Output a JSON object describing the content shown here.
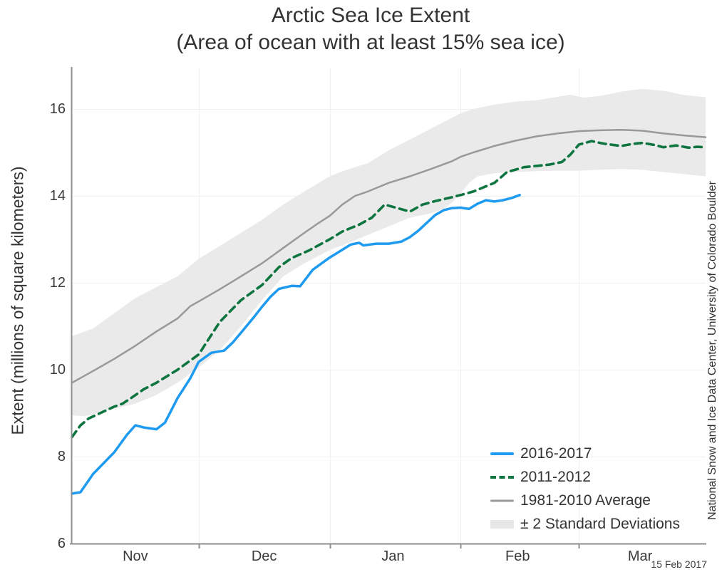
{
  "title": {
    "line1": "Arctic Sea Ice Extent",
    "line2": "(Area of ocean with at least 15% sea ice)"
  },
  "annotations": {
    "credit": "National Snow and Ice Data Center, University of Colorado Boulder",
    "date_stamp": "15 Feb 2017"
  },
  "colors": {
    "series_2016_2017": "#1e9bf0",
    "series_2011_2012": "#0e7540",
    "series_average": "#999999",
    "band": "#eaeaea",
    "gridline": "#f0f0f0",
    "axis": "#8f8f8f",
    "text": "#3a3a3a"
  },
  "legend": [
    {
      "label": "2016-2017",
      "swatch": "line-solid",
      "color": "#1e9bf0",
      "thickness": 4
    },
    {
      "label": "2011-2012",
      "swatch": "line-dashed",
      "color": "#0e7540",
      "thickness": 4
    },
    {
      "label": "1981-2010 Average",
      "swatch": "line-solid",
      "color": "#999999",
      "thickness": 3
    },
    {
      "label": "± 2 Standard Deviations",
      "swatch": "band",
      "color": "#e7e7e7",
      "thickness": 12
    }
  ],
  "chart_data": {
    "type": "line",
    "title": "Arctic Sea Ice Extent",
    "subtitle": "(Area of ocean with at least 15% sea ice)",
    "xlabel": "",
    "ylabel": "Extent (millions of square kilometers)",
    "x_unit": "days since 1 November",
    "xlim_days": [
      0,
      150
    ],
    "ylim": [
      6,
      16.93
    ],
    "grid": true,
    "legend_position": "lower right",
    "y_axis": {
      "label": "Extent (millions of square kilometers)",
      "ticks": [
        16,
        14,
        12,
        10,
        8,
        6
      ],
      "gridline_values": [
        8,
        10,
        12,
        14,
        16
      ]
    },
    "x_axis": {
      "months": [
        {
          "label": "Nov",
          "mid_day": 15
        },
        {
          "label": "Dec",
          "mid_day": 45.5
        },
        {
          "label": "Jan",
          "mid_day": 76
        },
        {
          "label": "Feb",
          "mid_day": 105.5
        },
        {
          "label": "Mar",
          "mid_day": 134.5
        }
      ],
      "tick_days": [
        30,
        61,
        92,
        120
      ]
    },
    "series": [
      {
        "name": "2016-2017",
        "style": "solid",
        "color": "#1e9bf0",
        "points": [
          [
            0,
            7.15
          ],
          [
            2,
            7.18
          ],
          [
            5,
            7.6
          ],
          [
            10,
            8.1
          ],
          [
            13,
            8.5
          ],
          [
            15,
            8.72
          ],
          [
            17,
            8.67
          ],
          [
            20,
            8.63
          ],
          [
            22,
            8.78
          ],
          [
            25,
            9.35
          ],
          [
            28,
            9.8
          ],
          [
            30,
            10.18
          ],
          [
            33,
            10.39
          ],
          [
            36,
            10.44
          ],
          [
            38,
            10.62
          ],
          [
            40,
            10.85
          ],
          [
            43,
            11.2
          ],
          [
            45,
            11.45
          ],
          [
            47,
            11.68
          ],
          [
            49,
            11.86
          ],
          [
            52,
            11.93
          ],
          [
            54,
            11.92
          ],
          [
            57,
            12.3
          ],
          [
            61,
            12.58
          ],
          [
            64,
            12.76
          ],
          [
            66,
            12.88
          ],
          [
            68,
            12.92
          ],
          [
            69,
            12.86
          ],
          [
            72,
            12.9
          ],
          [
            75,
            12.9
          ],
          [
            78,
            12.95
          ],
          [
            80,
            13.05
          ],
          [
            82,
            13.2
          ],
          [
            84,
            13.38
          ],
          [
            86,
            13.56
          ],
          [
            88,
            13.67
          ],
          [
            90,
            13.72
          ],
          [
            92,
            13.73
          ],
          [
            94,
            13.7
          ],
          [
            96,
            13.82
          ],
          [
            98,
            13.9
          ],
          [
            100,
            13.87
          ],
          [
            102,
            13.9
          ],
          [
            104,
            13.95
          ],
          [
            106,
            14.02
          ]
        ]
      },
      {
        "name": "2011-2012",
        "style": "dashed",
        "color": "#0e7540",
        "points": [
          [
            0,
            8.45
          ],
          [
            2,
            8.72
          ],
          [
            4,
            8.88
          ],
          [
            6,
            8.97
          ],
          [
            8,
            9.06
          ],
          [
            10,
            9.15
          ],
          [
            12,
            9.22
          ],
          [
            14,
            9.35
          ],
          [
            17,
            9.55
          ],
          [
            20,
            9.7
          ],
          [
            25,
            10.0
          ],
          [
            30,
            10.35
          ],
          [
            35,
            11.1
          ],
          [
            40,
            11.6
          ],
          [
            45,
            11.95
          ],
          [
            49,
            12.36
          ],
          [
            52,
            12.57
          ],
          [
            56,
            12.74
          ],
          [
            61,
            13.0
          ],
          [
            64,
            13.18
          ],
          [
            68,
            13.34
          ],
          [
            71,
            13.5
          ],
          [
            74,
            13.8
          ],
          [
            77,
            13.72
          ],
          [
            80,
            13.64
          ],
          [
            83,
            13.8
          ],
          [
            86,
            13.88
          ],
          [
            90,
            13.97
          ],
          [
            92,
            14.02
          ],
          [
            95,
            14.1
          ],
          [
            100,
            14.3
          ],
          [
            103,
            14.55
          ],
          [
            107,
            14.66
          ],
          [
            110,
            14.69
          ],
          [
            113,
            14.72
          ],
          [
            116,
            14.78
          ],
          [
            118,
            14.95
          ],
          [
            120,
            15.18
          ],
          [
            123,
            15.26
          ],
          [
            126,
            15.2
          ],
          [
            130,
            15.15
          ],
          [
            133,
            15.2
          ],
          [
            135,
            15.22
          ],
          [
            138,
            15.17
          ],
          [
            140,
            15.12
          ],
          [
            143,
            15.16
          ],
          [
            146,
            15.11
          ],
          [
            148,
            15.13
          ],
          [
            150,
            15.12
          ]
        ]
      },
      {
        "name": "1981-2010 Average",
        "style": "solid",
        "color": "#999999",
        "points": [
          [
            0,
            9.7
          ],
          [
            5,
            9.97
          ],
          [
            10,
            10.25
          ],
          [
            15,
            10.55
          ],
          [
            20,
            10.88
          ],
          [
            25,
            11.18
          ],
          [
            28,
            11.46
          ],
          [
            30,
            11.57
          ],
          [
            35,
            11.85
          ],
          [
            40,
            12.15
          ],
          [
            45,
            12.45
          ],
          [
            50,
            12.8
          ],
          [
            55,
            13.15
          ],
          [
            58,
            13.35
          ],
          [
            61,
            13.54
          ],
          [
            64,
            13.8
          ],
          [
            67,
            14.0
          ],
          [
            70,
            14.1
          ],
          [
            75,
            14.3
          ],
          [
            80,
            14.45
          ],
          [
            85,
            14.62
          ],
          [
            90,
            14.8
          ],
          [
            92,
            14.9
          ],
          [
            95,
            15.0
          ],
          [
            100,
            15.15
          ],
          [
            105,
            15.27
          ],
          [
            110,
            15.37
          ],
          [
            115,
            15.44
          ],
          [
            120,
            15.49
          ],
          [
            125,
            15.51
          ],
          [
            130,
            15.52
          ],
          [
            135,
            15.5
          ],
          [
            140,
            15.44
          ],
          [
            145,
            15.39
          ],
          [
            150,
            15.35
          ]
        ]
      }
    ],
    "band": {
      "name": "± 2 Standard Deviations",
      "color": "#eaeaea",
      "upper": [
        [
          0,
          10.77
        ],
        [
          5,
          10.95
        ],
        [
          10,
          11.3
        ],
        [
          15,
          11.65
        ],
        [
          20,
          11.9
        ],
        [
          25,
          12.15
        ],
        [
          30,
          12.55
        ],
        [
          35,
          12.85
        ],
        [
          40,
          13.15
        ],
        [
          45,
          13.45
        ],
        [
          50,
          13.8
        ],
        [
          55,
          14.1
        ],
        [
          61,
          14.45
        ],
        [
          65,
          14.6
        ],
        [
          70,
          14.75
        ],
        [
          75,
          15.05
        ],
        [
          80,
          15.3
        ],
        [
          85,
          15.55
        ],
        [
          90,
          15.8
        ],
        [
          92,
          15.9
        ],
        [
          95,
          16.0
        ],
        [
          100,
          16.1
        ],
        [
          105,
          16.17
        ],
        [
          110,
          16.2
        ],
        [
          115,
          16.28
        ],
        [
          118,
          16.33
        ],
        [
          121,
          16.26
        ],
        [
          125,
          16.3
        ],
        [
          130,
          16.4
        ],
        [
          135,
          16.46
        ],
        [
          140,
          16.42
        ],
        [
          145,
          16.32
        ],
        [
          150,
          16.27
        ]
      ],
      "lower": [
        [
          0,
          8.95
        ],
        [
          3,
          8.93
        ],
        [
          5,
          8.97
        ],
        [
          10,
          9.1
        ],
        [
          15,
          9.22
        ],
        [
          20,
          9.42
        ],
        [
          25,
          9.7
        ],
        [
          30,
          10.05
        ],
        [
          35,
          10.45
        ],
        [
          40,
          11.0
        ],
        [
          45,
          11.6
        ],
        [
          50,
          12.15
        ],
        [
          55,
          12.45
        ],
        [
          61,
          12.75
        ],
        [
          65,
          12.9
        ],
        [
          70,
          13.1
        ],
        [
          75,
          13.3
        ],
        [
          80,
          13.5
        ],
        [
          85,
          13.6
        ],
        [
          88,
          13.7
        ],
        [
          90,
          13.85
        ],
        [
          92,
          14.05
        ],
        [
          94,
          14.3
        ],
        [
          96,
          14.45
        ],
        [
          100,
          14.52
        ],
        [
          105,
          14.55
        ],
        [
          110,
          14.57
        ],
        [
          115,
          14.58
        ],
        [
          120,
          14.58
        ],
        [
          125,
          14.6
        ],
        [
          130,
          14.62
        ],
        [
          135,
          14.6
        ],
        [
          140,
          14.55
        ],
        [
          145,
          14.5
        ],
        [
          150,
          14.45
        ]
      ]
    }
  }
}
